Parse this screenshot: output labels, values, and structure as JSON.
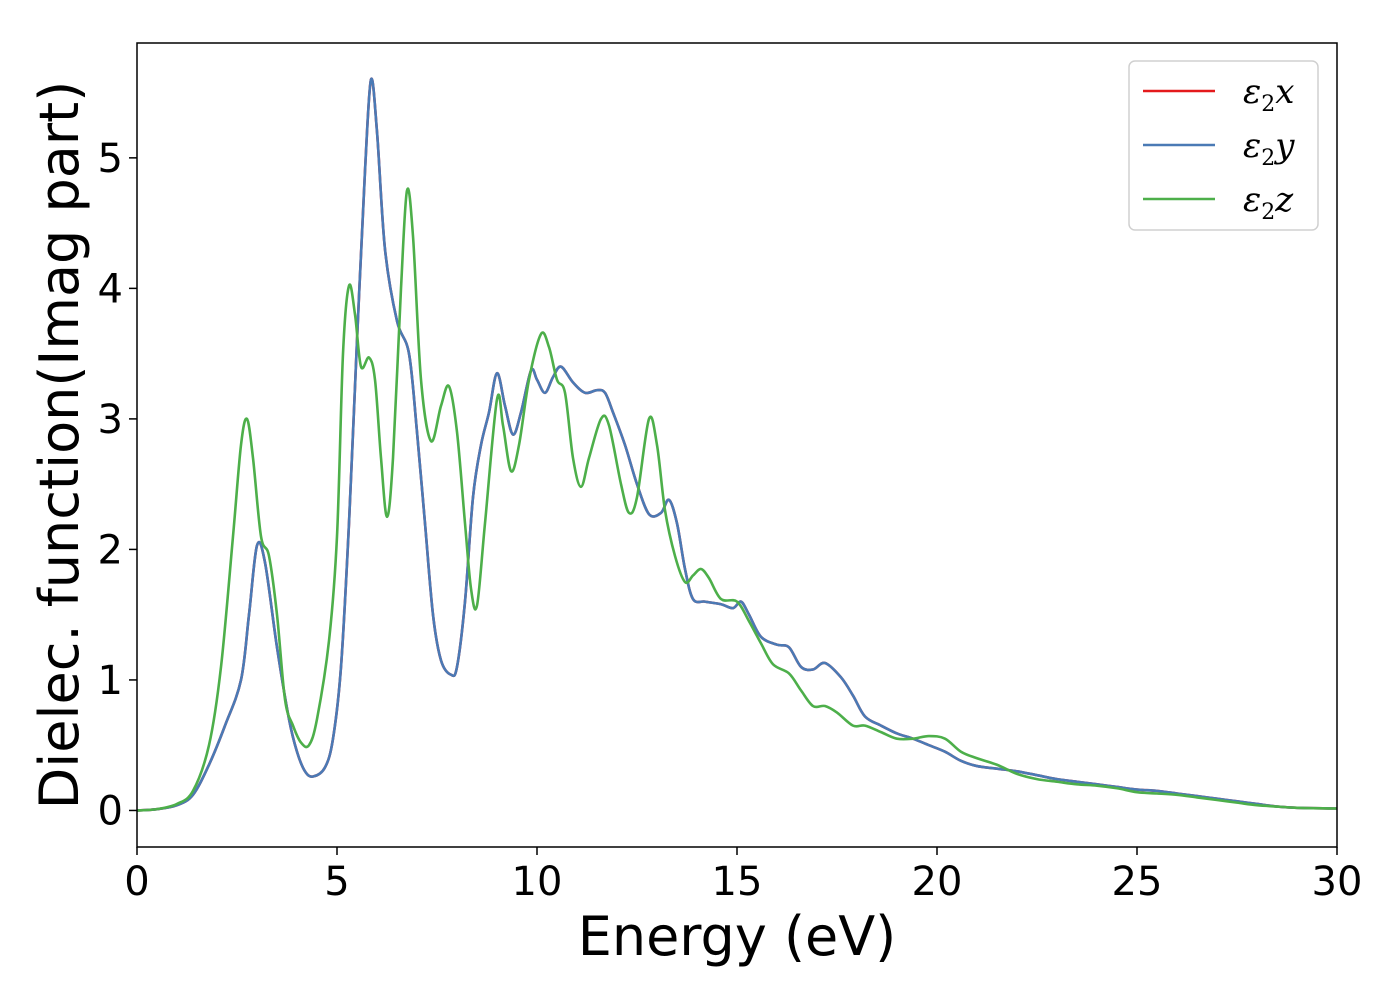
{
  "chart_data": {
    "type": "line",
    "title": "",
    "xlabel": "Energy (eV)",
    "ylabel": "Dielec. function(Imag part)",
    "xlim": [
      0,
      30
    ],
    "ylim": [
      -0.28,
      5.88
    ],
    "xticks": [
      0,
      5,
      10,
      15,
      20,
      25,
      30
    ],
    "yticks": [
      0,
      1,
      2,
      3,
      4,
      5
    ],
    "grid": false,
    "legend_position": "top-right",
    "series": [
      {
        "name": "ε2x",
        "base": "ε",
        "sub": "2",
        "suffix": "x",
        "color": "#e41a1c",
        "points": [
          [
            0,
            0.0
          ],
          [
            0.5,
            0.01
          ],
          [
            1,
            0.04
          ],
          [
            1.4,
            0.12
          ],
          [
            1.8,
            0.35
          ],
          [
            2.2,
            0.65
          ],
          [
            2.6,
            1.0
          ],
          [
            2.8,
            1.5
          ],
          [
            3.0,
            2.03
          ],
          [
            3.2,
            1.9
          ],
          [
            3.5,
            1.25
          ],
          [
            3.8,
            0.7
          ],
          [
            4.0,
            0.45
          ],
          [
            4.2,
            0.3
          ],
          [
            4.4,
            0.26
          ],
          [
            4.7,
            0.33
          ],
          [
            4.9,
            0.55
          ],
          [
            5.1,
            1.1
          ],
          [
            5.3,
            2.2
          ],
          [
            5.5,
            3.6
          ],
          [
            5.7,
            4.9
          ],
          [
            5.85,
            5.6
          ],
          [
            6.0,
            5.2
          ],
          [
            6.2,
            4.3
          ],
          [
            6.5,
            3.75
          ],
          [
            6.8,
            3.5
          ],
          [
            7.0,
            2.9
          ],
          [
            7.2,
            2.2
          ],
          [
            7.4,
            1.5
          ],
          [
            7.6,
            1.15
          ],
          [
            7.85,
            1.04
          ],
          [
            8.0,
            1.1
          ],
          [
            8.2,
            1.6
          ],
          [
            8.4,
            2.4
          ],
          [
            8.6,
            2.8
          ],
          [
            8.8,
            3.05
          ],
          [
            9.0,
            3.35
          ],
          [
            9.2,
            3.1
          ],
          [
            9.4,
            2.88
          ],
          [
            9.6,
            3.05
          ],
          [
            9.85,
            3.37
          ],
          [
            10.0,
            3.3
          ],
          [
            10.2,
            3.2
          ],
          [
            10.4,
            3.32
          ],
          [
            10.6,
            3.4
          ],
          [
            10.9,
            3.28
          ],
          [
            11.2,
            3.2
          ],
          [
            11.5,
            3.22
          ],
          [
            11.7,
            3.2
          ],
          [
            11.9,
            3.05
          ],
          [
            12.2,
            2.8
          ],
          [
            12.5,
            2.5
          ],
          [
            12.8,
            2.27
          ],
          [
            13.1,
            2.28
          ],
          [
            13.3,
            2.38
          ],
          [
            13.5,
            2.2
          ],
          [
            13.7,
            1.85
          ],
          [
            13.9,
            1.62
          ],
          [
            14.2,
            1.6
          ],
          [
            14.6,
            1.58
          ],
          [
            14.9,
            1.55
          ],
          [
            15.1,
            1.6
          ],
          [
            15.3,
            1.5
          ],
          [
            15.6,
            1.33
          ],
          [
            16.0,
            1.27
          ],
          [
            16.3,
            1.25
          ],
          [
            16.6,
            1.1
          ],
          [
            16.9,
            1.08
          ],
          [
            17.2,
            1.13
          ],
          [
            17.6,
            1.02
          ],
          [
            17.9,
            0.88
          ],
          [
            18.2,
            0.72
          ],
          [
            18.6,
            0.65
          ],
          [
            19.0,
            0.59
          ],
          [
            19.4,
            0.55
          ],
          [
            19.8,
            0.5
          ],
          [
            20.2,
            0.45
          ],
          [
            20.6,
            0.38
          ],
          [
            21.0,
            0.34
          ],
          [
            21.5,
            0.32
          ],
          [
            22.0,
            0.3
          ],
          [
            22.5,
            0.27
          ],
          [
            23.0,
            0.24
          ],
          [
            23.5,
            0.22
          ],
          [
            24.0,
            0.2
          ],
          [
            24.5,
            0.18
          ],
          [
            25.0,
            0.16
          ],
          [
            25.5,
            0.15
          ],
          [
            26.0,
            0.13
          ],
          [
            26.5,
            0.11
          ],
          [
            27.0,
            0.09
          ],
          [
            27.5,
            0.07
          ],
          [
            28.0,
            0.05
          ],
          [
            28.5,
            0.03
          ],
          [
            29.0,
            0.02
          ],
          [
            30.0,
            0.015
          ]
        ]
      },
      {
        "name": "ε2y",
        "base": "ε",
        "sub": "2",
        "suffix": "y",
        "color": "#4a7ab5",
        "points": [
          [
            0,
            0.0
          ],
          [
            0.5,
            0.01
          ],
          [
            1,
            0.04
          ],
          [
            1.4,
            0.12
          ],
          [
            1.8,
            0.35
          ],
          [
            2.2,
            0.65
          ],
          [
            2.6,
            1.0
          ],
          [
            2.8,
            1.5
          ],
          [
            3.0,
            2.03
          ],
          [
            3.2,
            1.9
          ],
          [
            3.5,
            1.25
          ],
          [
            3.8,
            0.7
          ],
          [
            4.0,
            0.45
          ],
          [
            4.2,
            0.3
          ],
          [
            4.4,
            0.26
          ],
          [
            4.7,
            0.33
          ],
          [
            4.9,
            0.55
          ],
          [
            5.1,
            1.1
          ],
          [
            5.3,
            2.2
          ],
          [
            5.5,
            3.6
          ],
          [
            5.7,
            4.9
          ],
          [
            5.85,
            5.6
          ],
          [
            6.0,
            5.2
          ],
          [
            6.2,
            4.3
          ],
          [
            6.5,
            3.75
          ],
          [
            6.8,
            3.5
          ],
          [
            7.0,
            2.9
          ],
          [
            7.2,
            2.2
          ],
          [
            7.4,
            1.5
          ],
          [
            7.6,
            1.15
          ],
          [
            7.85,
            1.04
          ],
          [
            8.0,
            1.1
          ],
          [
            8.2,
            1.6
          ],
          [
            8.4,
            2.4
          ],
          [
            8.6,
            2.8
          ],
          [
            8.8,
            3.05
          ],
          [
            9.0,
            3.35
          ],
          [
            9.2,
            3.1
          ],
          [
            9.4,
            2.88
          ],
          [
            9.6,
            3.05
          ],
          [
            9.85,
            3.37
          ],
          [
            10.0,
            3.3
          ],
          [
            10.2,
            3.2
          ],
          [
            10.4,
            3.32
          ],
          [
            10.6,
            3.4
          ],
          [
            10.9,
            3.28
          ],
          [
            11.2,
            3.2
          ],
          [
            11.5,
            3.22
          ],
          [
            11.7,
            3.2
          ],
          [
            11.9,
            3.05
          ],
          [
            12.2,
            2.8
          ],
          [
            12.5,
            2.5
          ],
          [
            12.8,
            2.27
          ],
          [
            13.1,
            2.28
          ],
          [
            13.3,
            2.38
          ],
          [
            13.5,
            2.2
          ],
          [
            13.7,
            1.85
          ],
          [
            13.9,
            1.62
          ],
          [
            14.2,
            1.6
          ],
          [
            14.6,
            1.58
          ],
          [
            14.9,
            1.55
          ],
          [
            15.1,
            1.6
          ],
          [
            15.3,
            1.5
          ],
          [
            15.6,
            1.33
          ],
          [
            16.0,
            1.27
          ],
          [
            16.3,
            1.25
          ],
          [
            16.6,
            1.1
          ],
          [
            16.9,
            1.08
          ],
          [
            17.2,
            1.13
          ],
          [
            17.6,
            1.02
          ],
          [
            17.9,
            0.88
          ],
          [
            18.2,
            0.72
          ],
          [
            18.6,
            0.65
          ],
          [
            19.0,
            0.59
          ],
          [
            19.4,
            0.55
          ],
          [
            19.8,
            0.5
          ],
          [
            20.2,
            0.45
          ],
          [
            20.6,
            0.38
          ],
          [
            21.0,
            0.34
          ],
          [
            21.5,
            0.32
          ],
          [
            22.0,
            0.3
          ],
          [
            22.5,
            0.27
          ],
          [
            23.0,
            0.24
          ],
          [
            23.5,
            0.22
          ],
          [
            24.0,
            0.2
          ],
          [
            24.5,
            0.18
          ],
          [
            25.0,
            0.16
          ],
          [
            25.5,
            0.15
          ],
          [
            26.0,
            0.13
          ],
          [
            26.5,
            0.11
          ],
          [
            27.0,
            0.09
          ],
          [
            27.5,
            0.07
          ],
          [
            28.0,
            0.05
          ],
          [
            28.5,
            0.03
          ],
          [
            29.0,
            0.02
          ],
          [
            30.0,
            0.015
          ]
        ]
      },
      {
        "name": "ε2z",
        "base": "ε",
        "sub": "2",
        "suffix": "z",
        "color": "#4daf4a",
        "points": [
          [
            0,
            0.0
          ],
          [
            0.5,
            0.01
          ],
          [
            1,
            0.05
          ],
          [
            1.4,
            0.15
          ],
          [
            1.8,
            0.5
          ],
          [
            2.1,
            1.1
          ],
          [
            2.4,
            2.1
          ],
          [
            2.6,
            2.8
          ],
          [
            2.75,
            3.0
          ],
          [
            2.9,
            2.7
          ],
          [
            3.1,
            2.1
          ],
          [
            3.3,
            1.95
          ],
          [
            3.5,
            1.5
          ],
          [
            3.7,
            0.85
          ],
          [
            3.9,
            0.65
          ],
          [
            4.1,
            0.52
          ],
          [
            4.3,
            0.5
          ],
          [
            4.5,
            0.7
          ],
          [
            4.8,
            1.3
          ],
          [
            5.0,
            2.1
          ],
          [
            5.15,
            3.5
          ],
          [
            5.3,
            4.02
          ],
          [
            5.45,
            3.8
          ],
          [
            5.6,
            3.4
          ],
          [
            5.8,
            3.47
          ],
          [
            5.95,
            3.3
          ],
          [
            6.1,
            2.7
          ],
          [
            6.25,
            2.25
          ],
          [
            6.4,
            2.7
          ],
          [
            6.6,
            4.0
          ],
          [
            6.75,
            4.75
          ],
          [
            6.9,
            4.4
          ],
          [
            7.1,
            3.3
          ],
          [
            7.35,
            2.83
          ],
          [
            7.6,
            3.1
          ],
          [
            7.8,
            3.25
          ],
          [
            8.0,
            2.9
          ],
          [
            8.2,
            2.2
          ],
          [
            8.35,
            1.7
          ],
          [
            8.5,
            1.57
          ],
          [
            8.7,
            2.2
          ],
          [
            9.0,
            3.15
          ],
          [
            9.15,
            2.95
          ],
          [
            9.35,
            2.6
          ],
          [
            9.55,
            2.8
          ],
          [
            9.8,
            3.3
          ],
          [
            10.1,
            3.65
          ],
          [
            10.3,
            3.55
          ],
          [
            10.5,
            3.3
          ],
          [
            10.7,
            3.2
          ],
          [
            10.9,
            2.7
          ],
          [
            11.1,
            2.48
          ],
          [
            11.3,
            2.7
          ],
          [
            11.6,
            3.0
          ],
          [
            11.8,
            2.95
          ],
          [
            12.1,
            2.5
          ],
          [
            12.3,
            2.28
          ],
          [
            12.5,
            2.4
          ],
          [
            12.8,
            3.0
          ],
          [
            13.0,
            2.8
          ],
          [
            13.2,
            2.3
          ],
          [
            13.45,
            1.95
          ],
          [
            13.7,
            1.75
          ],
          [
            13.9,
            1.8
          ],
          [
            14.1,
            1.85
          ],
          [
            14.3,
            1.78
          ],
          [
            14.6,
            1.62
          ],
          [
            15.0,
            1.6
          ],
          [
            15.3,
            1.45
          ],
          [
            15.6,
            1.28
          ],
          [
            15.9,
            1.12
          ],
          [
            16.3,
            1.05
          ],
          [
            16.6,
            0.92
          ],
          [
            16.9,
            0.8
          ],
          [
            17.2,
            0.8
          ],
          [
            17.5,
            0.75
          ],
          [
            17.9,
            0.65
          ],
          [
            18.2,
            0.65
          ],
          [
            18.6,
            0.6
          ],
          [
            19.0,
            0.55
          ],
          [
            19.4,
            0.55
          ],
          [
            19.8,
            0.57
          ],
          [
            20.2,
            0.55
          ],
          [
            20.6,
            0.45
          ],
          [
            21.0,
            0.4
          ],
          [
            21.5,
            0.35
          ],
          [
            22.0,
            0.28
          ],
          [
            22.5,
            0.24
          ],
          [
            23.0,
            0.22
          ],
          [
            23.5,
            0.2
          ],
          [
            24.0,
            0.19
          ],
          [
            24.5,
            0.17
          ],
          [
            25.0,
            0.14
          ],
          [
            25.5,
            0.13
          ],
          [
            26.0,
            0.12
          ],
          [
            26.5,
            0.1
          ],
          [
            27.0,
            0.08
          ],
          [
            27.5,
            0.06
          ],
          [
            28.0,
            0.04
          ],
          [
            28.5,
            0.03
          ],
          [
            29.0,
            0.02
          ],
          [
            30.0,
            0.015
          ]
        ]
      }
    ]
  }
}
